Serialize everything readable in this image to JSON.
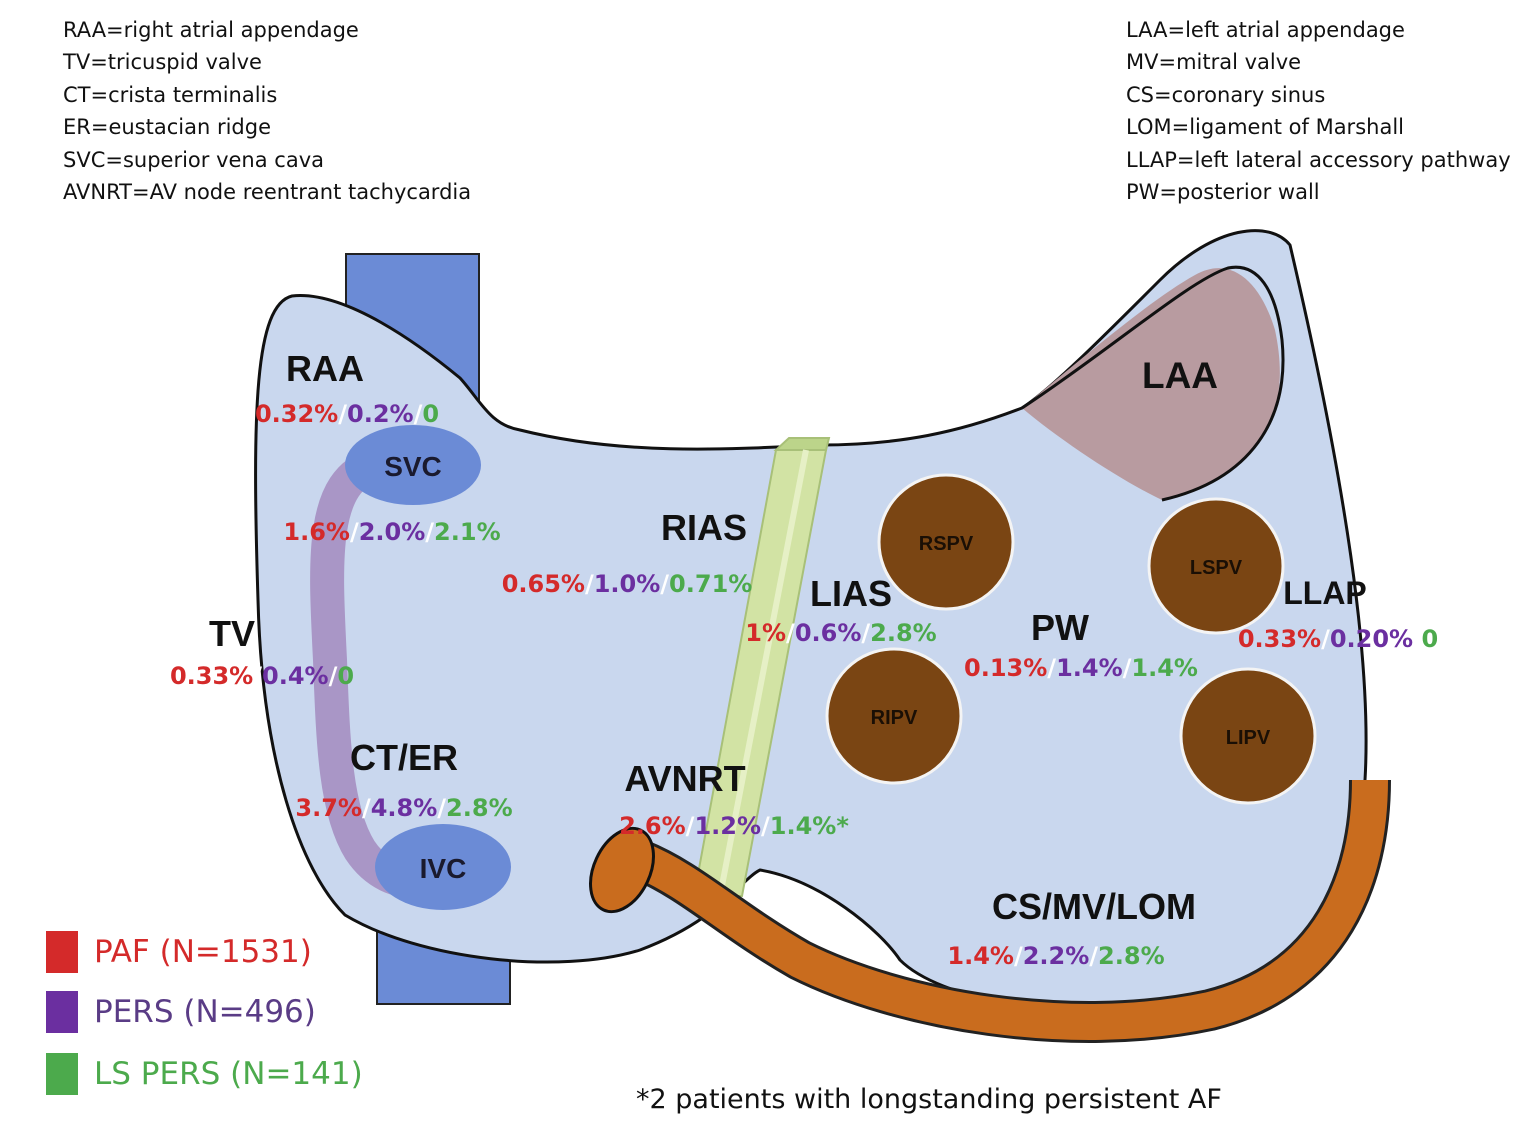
{
  "abbreviations_left": [
    "RAA=right atrial appendage",
    "TV=tricuspid valve",
    "CT=crista terminalis",
    "ER=eustacian ridge",
    "SVC=superior vena cava",
    "AVNRT=AV node reentrant tachycardia"
  ],
  "abbreviations_right": [
    "LAA=left atrial appendage",
    "MV=mitral valve",
    "CS=coronary sinus",
    "LOM=ligament of Marshall",
    "LLAP=left lateral accessory pathway",
    "PW=posterior wall"
  ],
  "colors": {
    "paf": "#d42a2a",
    "pers": "#6b2fa0",
    "ls_pers": "#4caa4c",
    "atrium": "#c9d7ee",
    "vessel": "#6b8bd6",
    "vein": "#7a4513",
    "cs": "#c96c1e",
    "laa": "#b89ba0",
    "septum": "#d2e3a4"
  },
  "structures": {
    "svc": "SVC",
    "ivc": "IVC",
    "laa": "LAA",
    "rspv": "RSPV",
    "ripv": "RIPV",
    "lspv": "LSPV",
    "lipv": "LIPV"
  },
  "regions": [
    {
      "id": "raa",
      "label": "RAA",
      "paf": "0.32%",
      "pers": "0.2%",
      "ls": "0"
    },
    {
      "id": "svc",
      "label": "",
      "paf": "1.6%",
      "pers": "2.0%",
      "ls": "2.1%"
    },
    {
      "id": "tv",
      "label": "TV",
      "paf": "0.33%",
      "pers": "0.4%",
      "ls": "0"
    },
    {
      "id": "ct-er",
      "label": "CT/ER",
      "paf": "3.7%",
      "pers": "4.8%",
      "ls": "2.8%"
    },
    {
      "id": "rias",
      "label": "RIAS",
      "paf": "0.65%",
      "pers": "1.0%",
      "ls": "0.71%"
    },
    {
      "id": "lias",
      "label": "LIAS",
      "paf": "1%",
      "pers": "0.6%",
      "ls": "2.8%"
    },
    {
      "id": "avnrt",
      "label": "AVNRT",
      "paf": "2.6%",
      "pers": "1.2%",
      "ls": "1.4%*"
    },
    {
      "id": "pw",
      "label": "PW",
      "paf": "0.13%",
      "pers": "1.4%",
      "ls": "1.4%"
    },
    {
      "id": "llap",
      "label": "LLAP",
      "paf": "0.33%",
      "pers": "0.20%",
      "ls": "0"
    },
    {
      "id": "cs-mv-lom",
      "label": "CS/MV/LOM",
      "paf": "1.4%",
      "pers": "2.2%",
      "ls": "2.8%"
    }
  ],
  "legend": [
    {
      "label": "PAF (N=1531)",
      "color": "#d42a2a"
    },
    {
      "label": "PERS (N=496)",
      "color": "#6b2fa0"
    },
    {
      "label": "LS PERS (N=141)",
      "color": "#4caa4c"
    }
  ],
  "footnote": "*2 patients with longstanding persistent AF"
}
